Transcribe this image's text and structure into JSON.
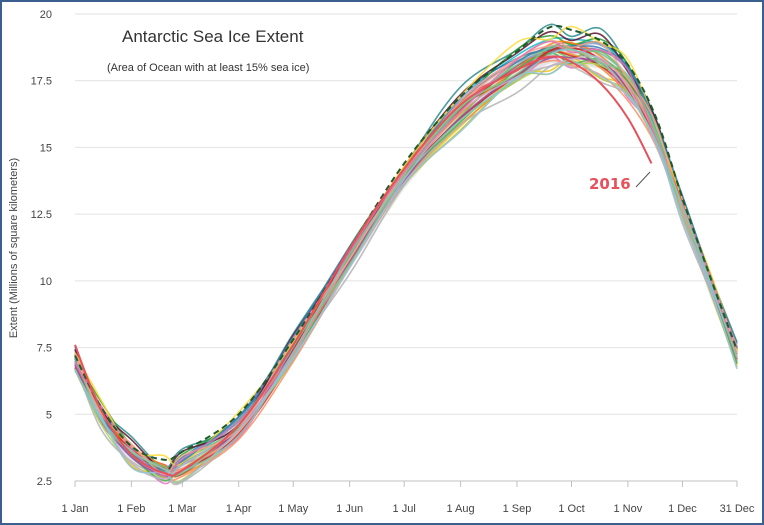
{
  "chart_data": {
    "type": "line",
    "title": "Antarctic Sea Ice Extent",
    "subtitle": "(Area of Ocean with at least 15% sea ice)",
    "ylabel": "Extent (Millions of square kilometers)",
    "xlabel": "",
    "ylim": [
      2.5,
      20
    ],
    "yticks": [
      2.5,
      5,
      7.5,
      10,
      12.5,
      15,
      17.5,
      20
    ],
    "ytick_labels": [
      "2.5",
      "5",
      "7.5",
      "10",
      "12.5",
      "15",
      "17.5",
      "20"
    ],
    "xtick_days": [
      1,
      32,
      60,
      91,
      121,
      152,
      182,
      213,
      244,
      274,
      305,
      335,
      365
    ],
    "xtick_labels": [
      "1 Jan",
      "1 Feb",
      "1 Mar",
      "1 Apr",
      "1 May",
      "1 Jun",
      "1 Jul",
      "1 Aug",
      "1 Sep",
      "1 Oct",
      "1 Nov",
      "1 Dec",
      "31 Dec"
    ],
    "xlim": [
      1,
      365
    ],
    "grid": "horizontal",
    "x_anchor_days": [
      1,
      15,
      32,
      50,
      60,
      91,
      121,
      152,
      182,
      213,
      244,
      262,
      274,
      290,
      305,
      320,
      335,
      350,
      365
    ],
    "climatology": [
      7.0,
      5.0,
      3.5,
      2.8,
      3.0,
      4.5,
      7.4,
      10.8,
      13.8,
      16.3,
      17.9,
      18.5,
      18.5,
      18.3,
      17.4,
      15.5,
      12.7,
      9.8,
      7.2
    ],
    "series_colors": [
      "#e8505b",
      "#2e8b8b",
      "#f0c419",
      "#6cc04a",
      "#f28e2b",
      "#9467bd",
      "#17becf",
      "#d62728",
      "#1f77b4",
      "#8c564b",
      "#e377c2",
      "#bcbd22",
      "#2ca02c",
      "#ff7f0e",
      "#a6d854",
      "#66c2a5",
      "#fc8d62",
      "#8da0cb",
      "#b3b3b3",
      "#5a1030",
      "#ffd92f",
      "#4daf4a",
      "#e41a1c",
      "#377eb8",
      "#984ea3",
      "#ff9896",
      "#c5b0d5",
      "#7fc97f",
      "#f4a582",
      "#92c5de",
      "#de77ae",
      "#80cdc1"
    ],
    "series_offsets": [
      0.2,
      0.9,
      -0.4,
      0.1,
      -0.2,
      0.3,
      0.5,
      -0.1,
      0.4,
      0.0,
      -0.3,
      -0.5,
      0.6,
      0.2,
      -0.2,
      0.1,
      -0.4,
      0.3,
      -0.6,
      0.7,
      0.8,
      -0.1,
      0.0,
      0.5,
      -0.3,
      0.2,
      -0.2,
      0.1,
      0.4,
      -0.5,
      0.3,
      -0.1
    ],
    "highlight_series": {
      "name": "2016",
      "color": "#e8505b",
      "x_days": [
        1,
        15,
        32,
        50,
        60,
        91,
        121,
        152,
        182,
        213,
        244,
        262,
        274,
        290,
        305,
        318
      ],
      "values": [
        7.6,
        5.2,
        3.5,
        2.8,
        2.9,
        4.6,
        7.6,
        11.2,
        14.2,
        16.6,
        17.9,
        18.4,
        18.2,
        17.4,
        16.1,
        14.4
      ]
    },
    "dashed_series": {
      "color": "#1e5a2e",
      "x_days": [
        1,
        15,
        32,
        50,
        60,
        91,
        121,
        152,
        182,
        213,
        244,
        262,
        274,
        290,
        305,
        320,
        335,
        350,
        365
      ],
      "values": [
        7.2,
        5.3,
        3.8,
        3.3,
        3.6,
        5.0,
        7.8,
        11.2,
        14.4,
        16.9,
        18.6,
        19.5,
        19.4,
        19.0,
        18.1,
        16.2,
        13.1,
        10.2,
        7.4
      ]
    },
    "annotation": {
      "text": "2016"
    }
  }
}
